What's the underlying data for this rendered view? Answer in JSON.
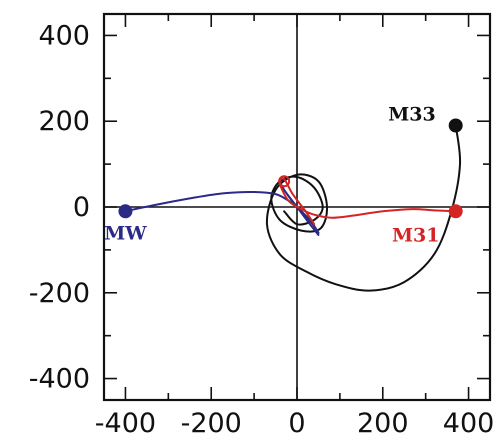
{
  "chart_data": {
    "type": "line",
    "title": "",
    "xlabel": "",
    "ylabel": "",
    "xlim": [
      -450,
      450
    ],
    "ylim": [
      -450,
      450
    ],
    "grid": false,
    "xticks": [
      -400,
      -200,
      0,
      200,
      400
    ],
    "yticks": [
      -400,
      -200,
      0,
      200,
      400
    ],
    "xtick_labels": [
      "-400",
      "-200",
      "0",
      "200",
      "400"
    ],
    "ytick_labels": [
      "-400",
      "-200",
      "0",
      "200",
      "400"
    ],
    "series": [
      {
        "name": "MW",
        "color": "#2b2a86",
        "x": [
          -400,
          -330,
          -250,
          -170,
          -100,
          -50,
          -20,
          0,
          20,
          40,
          50,
          30,
          0,
          -30,
          -40,
          -30,
          0,
          30,
          50
        ],
        "y": [
          -10,
          5,
          20,
          32,
          35,
          30,
          15,
          0,
          -20,
          -45,
          -60,
          -30,
          0,
          40,
          60,
          40,
          0,
          -40,
          -65
        ]
      },
      {
        "name": "M31",
        "color": "#d42424",
        "x": [
          370,
          320,
          270,
          200,
          130,
          80,
          40,
          10,
          -20,
          -40,
          -30,
          -10,
          20,
          40
        ],
        "y": [
          -10,
          -8,
          -5,
          -10,
          -20,
          -25,
          -18,
          -5,
          15,
          55,
          65,
          30,
          -10,
          -40
        ]
      },
      {
        "name": "M33",
        "color": "#111111",
        "x": [
          370,
          380,
          360,
          320,
          250,
          170,
          90,
          20,
          -40,
          -70,
          -50,
          0,
          50,
          70,
          55,
          10,
          -40,
          -60,
          -40,
          0,
          40,
          60,
          40,
          0,
          -30
        ],
        "y": [
          190,
          100,
          -10,
          -110,
          -175,
          -195,
          -180,
          -150,
          -110,
          -40,
          40,
          75,
          60,
          0,
          -50,
          -55,
          -30,
          20,
          60,
          70,
          45,
          0,
          -30,
          -40,
          -10
        ]
      }
    ],
    "points": [
      {
        "name": "MW",
        "x": -400,
        "y": -10,
        "color": "#2b2a86",
        "label": "MW"
      },
      {
        "name": "M31",
        "x": 370,
        "y": -10,
        "color": "#d42424",
        "label": "M31"
      },
      {
        "name": "M33",
        "x": 370,
        "y": 190,
        "color": "#111111",
        "label": "M33"
      },
      {
        "name": "M31 now",
        "x": -30,
        "y": 60,
        "color": "#d42424",
        "label": "",
        "open": true
      }
    ]
  }
}
